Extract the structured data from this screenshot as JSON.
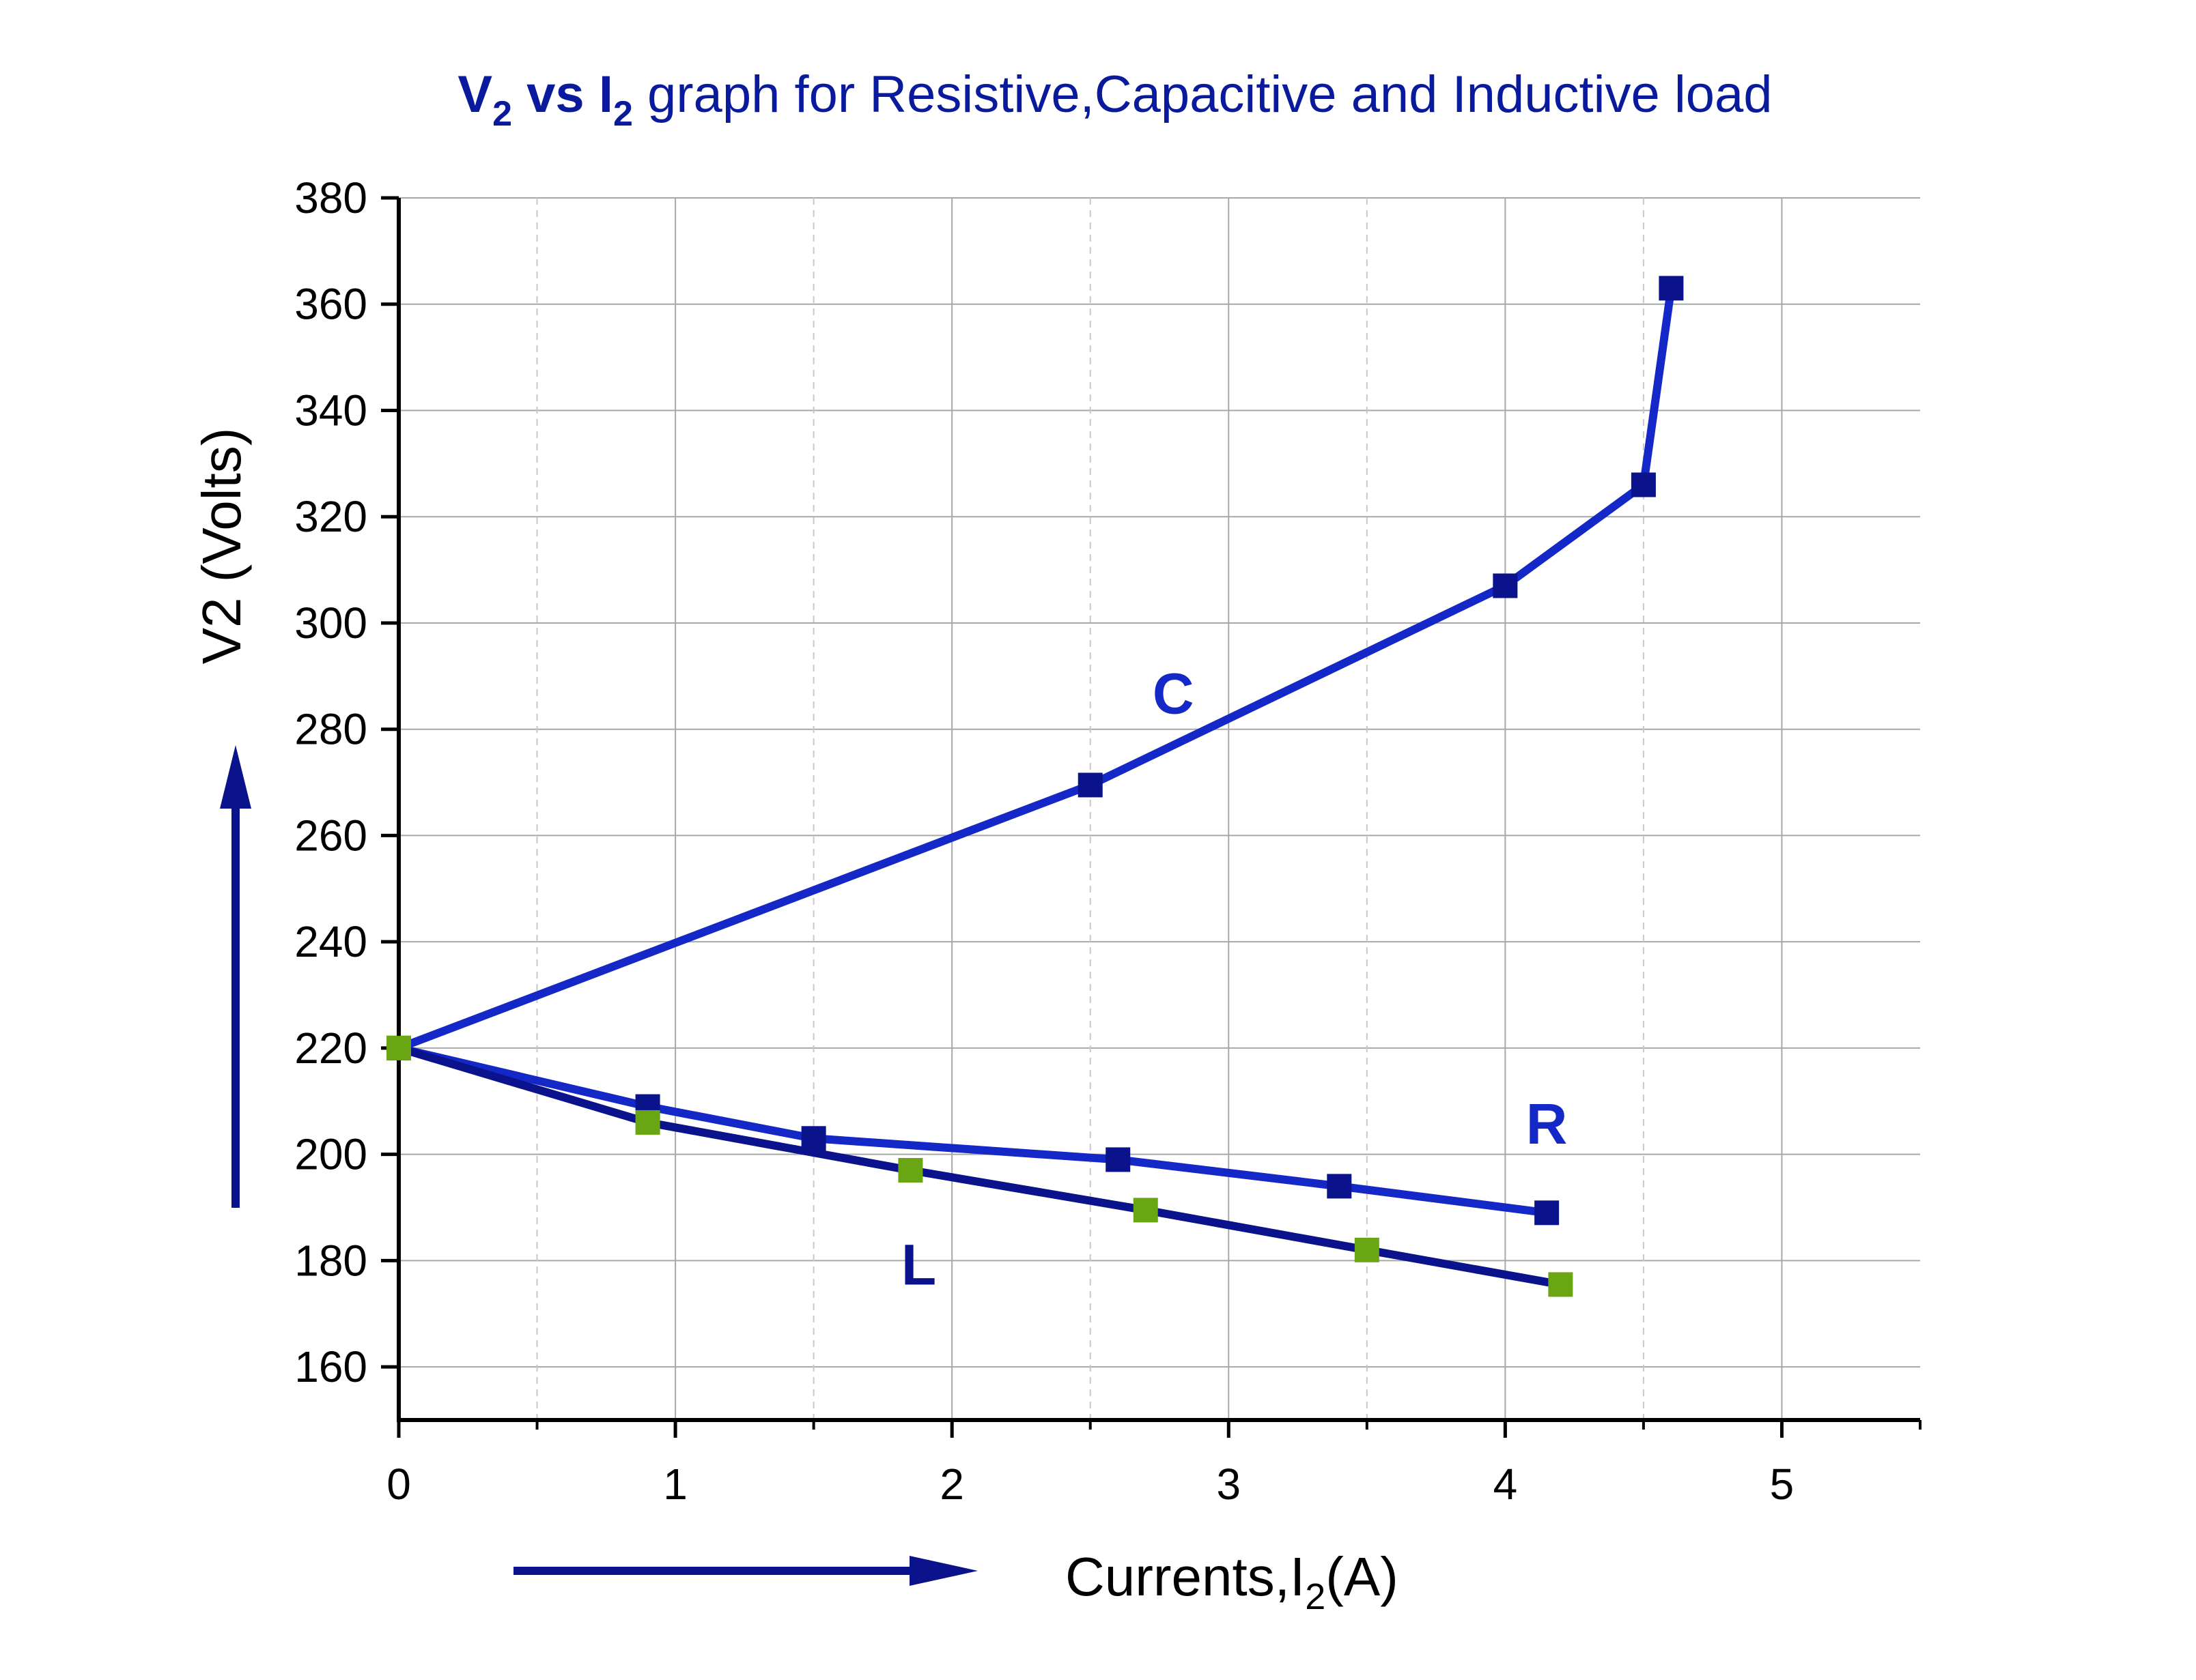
{
  "chart_data": {
    "type": "line",
    "title": {
      "v": "V",
      "v_sub": "2",
      "vs": " vs ",
      "i": "I",
      "i_sub": "2",
      "rest": " graph for Resistive,Capacitive and Inductive load"
    },
    "xlabel": {
      "main": "Currents,I",
      "sub": "2",
      "unit": "(A)"
    },
    "ylabel": "V2 (Volts)",
    "xlim": [
      0,
      5.5
    ],
    "ylim": [
      150,
      380
    ],
    "x_major_ticks": [
      0,
      1,
      2,
      3,
      4,
      5
    ],
    "x_minor_gridlines": [
      0.5,
      1.5,
      2.5,
      3.5,
      4.5
    ],
    "y_major_ticks": [
      160,
      180,
      200,
      220,
      240,
      260,
      280,
      300,
      320,
      340,
      360,
      380
    ],
    "grid": true,
    "series": [
      {
        "name": "C",
        "line_color": "#1428c8",
        "marker_color": "#0a128c",
        "points": [
          [
            0,
            220
          ],
          [
            2.5,
            269.5
          ],
          [
            4.0,
            307
          ],
          [
            4.5,
            326
          ],
          [
            4.6,
            363
          ]
        ]
      },
      {
        "name": "R",
        "line_color": "#1428c8",
        "marker_color": "#0a128c",
        "points": [
          [
            0,
            220
          ],
          [
            0.9,
            209
          ],
          [
            1.5,
            203
          ],
          [
            2.6,
            199
          ],
          [
            3.4,
            194
          ],
          [
            4.15,
            189
          ]
        ]
      },
      {
        "name": "L",
        "line_color": "#0a128c",
        "marker_color": "#6aa614",
        "points": [
          [
            0,
            220
          ],
          [
            0.9,
            206
          ],
          [
            1.85,
            197
          ],
          [
            2.7,
            189.5
          ],
          [
            3.5,
            182
          ],
          [
            4.2,
            175.5
          ]
        ]
      }
    ],
    "annotations": [
      {
        "text": "C",
        "x": 2.8,
        "y": 283,
        "color": "#1428c8"
      },
      {
        "text": "R",
        "x": 4.15,
        "y": 202,
        "color": "#1428c8"
      },
      {
        "text": "L",
        "x": 1.88,
        "y": 175.5,
        "color": "#0a128c"
      }
    ],
    "arrow_color": "#0a128c"
  }
}
